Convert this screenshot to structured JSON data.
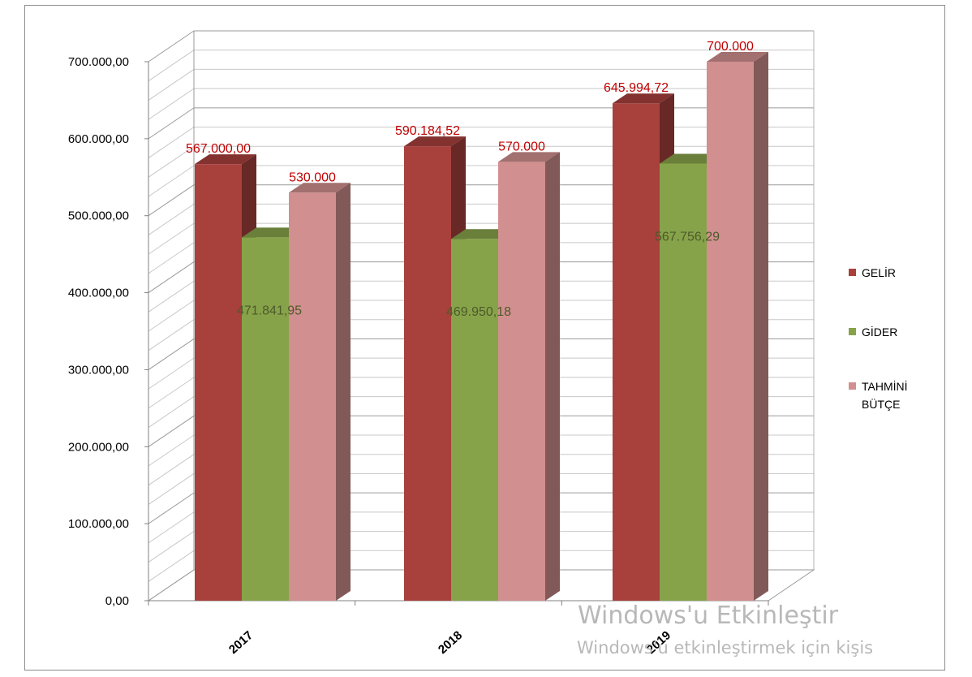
{
  "chart_data": {
    "type": "bar",
    "title": "",
    "xlabel": "",
    "ylabel": "",
    "categories": [
      "2017",
      "2018",
      "2019"
    ],
    "series": [
      {
        "name": "GELİR",
        "values": [
          567000.0,
          590184.52,
          645994.72
        ],
        "labels": [
          "567.000,00",
          "590.184,52",
          "645.994,72"
        ],
        "color": "#a8403c"
      },
      {
        "name": "GİDER",
        "values": [
          471841.95,
          469950.18,
          567756.29
        ],
        "labels": [
          "471.841,95",
          "469.950,18",
          "567.756,29"
        ],
        "color": "#86a34a"
      },
      {
        "name": "TAHMİNİ BÜTÇE",
        "values": [
          530000,
          570000,
          700000
        ],
        "labels": [
          "530.000",
          "570.000",
          "700.000"
        ],
        "color": "#d18f8f"
      }
    ],
    "legend_lines": [
      [
        "GELİR"
      ],
      [
        "GİDER"
      ],
      [
        "TAHMİNİ",
        "BÜTÇE"
      ]
    ],
    "ylim": [
      0,
      700000
    ],
    "yticks": [
      0,
      100000,
      200000,
      300000,
      400000,
      500000,
      600000,
      700000
    ],
    "ytick_labels": [
      "0,00",
      "100.000,00",
      "200.000,00",
      "300.000,00",
      "400.000,00",
      "500.000,00",
      "600.000,00",
      "700.000,00"
    ],
    "grid": true,
    "legend_position": "right",
    "three_d": true
  },
  "watermark": {
    "title": "Windows'u Etkinleştir",
    "subtitle": "Windows'u etkinleştirmek için kişis"
  }
}
